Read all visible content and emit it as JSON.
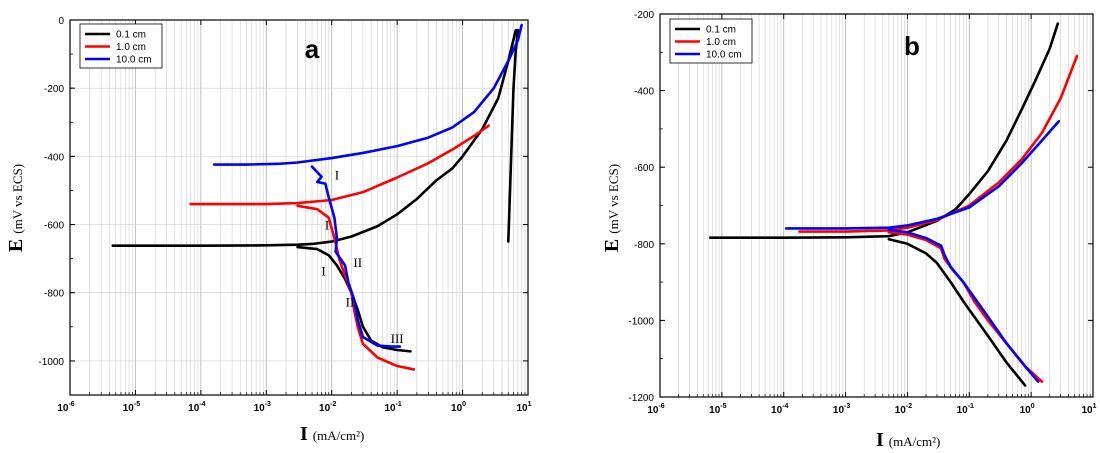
{
  "chart_data": [
    {
      "type": "line",
      "panel_label": "a",
      "xlabel": "I",
      "xunit": "(mA/cm²)",
      "ylabel": "E",
      "yunit": "(mV vs ECS)",
      "xscale": "log",
      "xlim": [
        1e-06,
        10
      ],
      "ylim": [
        -1100,
        0
      ],
      "yticks": [
        0,
        -200,
        -400,
        -600,
        -800,
        -1000
      ],
      "xtick_exponents": [
        -6,
        -5,
        -4,
        -3,
        -2,
        -1,
        0,
        1
      ],
      "grid": "x-minor",
      "legend": "top-left",
      "series": [
        {
          "name": "0.1 cm",
          "color": "#000000",
          "points": [
            [
              4.5e-06,
              -662
            ],
            [
              1e-05,
              -662
            ],
            [
              0.0001,
              -662
            ],
            [
              0.001,
              -661
            ],
            [
              0.003,
              -659
            ],
            [
              0.005,
              -657
            ],
            [
              0.01,
              -650
            ],
            [
              0.02,
              -635
            ],
            [
              0.05,
              -605
            ],
            [
              0.1,
              -570
            ],
            [
              0.2,
              -525
            ],
            [
              0.4,
              -470
            ],
            [
              0.7,
              -435
            ],
            [
              1.0,
              -400
            ],
            [
              2.0,
              -320
            ],
            [
              3.5,
              -230
            ],
            [
              5.0,
              -120
            ],
            [
              6.5,
              -30
            ],
            [
              7.0,
              -30
            ],
            [
              6.5,
              -90
            ],
            [
              6.0,
              -200
            ],
            [
              5.0,
              -650
            ]
          ],
          "branch2": [
            [
              0.003,
              -666
            ],
            [
              0.006,
              -672
            ],
            [
              0.009,
              -690
            ],
            [
              0.012,
              -720
            ],
            [
              0.016,
              -760
            ],
            [
              0.02,
              -800
            ],
            [
              0.025,
              -850
            ],
            [
              0.03,
              -900
            ],
            [
              0.04,
              -940
            ],
            [
              0.06,
              -960
            ],
            [
              0.1,
              -968
            ],
            [
              0.16,
              -972
            ]
          ]
        },
        {
          "name": "1.0 cm",
          "color": "#ff0000",
          "points": [
            [
              7e-05,
              -540
            ],
            [
              0.0001,
              -540
            ],
            [
              0.001,
              -540
            ],
            [
              0.003,
              -537
            ],
            [
              0.01,
              -528
            ],
            [
              0.03,
              -505
            ],
            [
              0.1,
              -462
            ],
            [
              0.3,
              -420
            ],
            [
              0.7,
              -380
            ],
            [
              1.5,
              -340
            ],
            [
              2.5,
              -310
            ]
          ],
          "branch2": [
            [
              0.003,
              -545
            ],
            [
              0.006,
              -555
            ],
            [
              0.009,
              -580
            ],
            [
              0.011,
              -640
            ],
            [
              0.013,
              -700
            ],
            [
              0.016,
              -750
            ],
            [
              0.02,
              -800
            ],
            [
              0.022,
              -850
            ],
            [
              0.025,
              -900
            ],
            [
              0.03,
              -950
            ],
            [
              0.05,
              -990
            ],
            [
              0.1,
              -1015
            ],
            [
              0.18,
              -1025
            ]
          ]
        },
        {
          "name": "10.0 cm",
          "color": "#0000ff",
          "points": [
            [
              0.00016,
              -424
            ],
            [
              0.0005,
              -424
            ],
            [
              0.0015,
              -422
            ],
            [
              0.003,
              -418
            ],
            [
              0.01,
              -405
            ],
            [
              0.03,
              -390
            ],
            [
              0.1,
              -370
            ],
            [
              0.3,
              -345
            ],
            [
              0.7,
              -315
            ],
            [
              1.5,
              -270
            ],
            [
              3.0,
              -200
            ],
            [
              5.0,
              -120
            ],
            [
              7.0,
              -60
            ],
            [
              8.0,
              -15
            ]
          ],
          "branch2": [
            [
              0.005,
              -430
            ],
            [
              0.007,
              -460
            ],
            [
              0.006,
              -475
            ],
            [
              0.008,
              -480
            ],
            [
              0.009,
              -520
            ],
            [
              0.011,
              -580
            ],
            [
              0.012,
              -640
            ],
            [
              0.0115,
              -680
            ],
            [
              0.016,
              -720
            ],
            [
              0.018,
              -770
            ],
            [
              0.022,
              -820
            ],
            [
              0.025,
              -880
            ],
            [
              0.03,
              -930
            ],
            [
              0.05,
              -955
            ],
            [
              0.08,
              -958
            ],
            [
              0.11,
              -958
            ]
          ]
        }
      ],
      "annotations": [
        {
          "text": "I",
          "x": 0.012,
          "y": -468
        },
        {
          "text": "I",
          "x": 0.0085,
          "y": -615
        },
        {
          "text": "I",
          "x": 0.0075,
          "y": -750
        },
        {
          "text": "II",
          "x": 0.025,
          "y": -725
        },
        {
          "text": "II",
          "x": 0.019,
          "y": -840
        },
        {
          "text": "III",
          "x": 0.1,
          "y": -948
        }
      ]
    },
    {
      "type": "line",
      "panel_label": "b",
      "xlabel": "I",
      "xunit": "(mA/cm²)",
      "ylabel": "E",
      "yunit": "(mV vs ECS)",
      "xscale": "log",
      "xlim": [
        1e-06,
        10
      ],
      "ylim": [
        -1200,
        -200
      ],
      "yticks": [
        -200,
        -400,
        -600,
        -800,
        -1000,
        -1200
      ],
      "xtick_exponents": [
        -6,
        -5,
        -4,
        -3,
        -2,
        -1,
        0,
        1
      ],
      "grid": "x-minor",
      "legend": "top-left",
      "series": [
        {
          "name": "0.1 cm",
          "color": "#000000",
          "points": [
            [
              6.5e-06,
              -784
            ],
            [
              0.0001,
              -784
            ],
            [
              0.001,
              -783
            ],
            [
              0.005,
              -780
            ],
            [
              0.01,
              -770
            ],
            [
              0.03,
              -740
            ],
            [
              0.06,
              -710
            ],
            [
              0.1,
              -670
            ],
            [
              0.2,
              -610
            ],
            [
              0.4,
              -530
            ],
            [
              0.7,
              -450
            ],
            [
              1.2,
              -370
            ],
            [
              2.0,
              -290
            ],
            [
              2.7,
              -225
            ]
          ],
          "branch2": [
            [
              0.005,
              -788
            ],
            [
              0.01,
              -800
            ],
            [
              0.02,
              -825
            ],
            [
              0.03,
              -850
            ],
            [
              0.05,
              -900
            ],
            [
              0.08,
              -950
            ],
            [
              0.12,
              -990
            ],
            [
              0.2,
              -1040
            ],
            [
              0.4,
              -1110
            ],
            [
              0.8,
              -1170
            ]
          ]
        },
        {
          "name": "1.0 cm",
          "color": "#ff0000",
          "points": [
            [
              0.00018,
              -768
            ],
            [
              0.001,
              -768
            ],
            [
              0.005,
              -765
            ],
            [
              0.01,
              -758
            ],
            [
              0.03,
              -738
            ],
            [
              0.1,
              -700
            ],
            [
              0.3,
              -640
            ],
            [
              0.7,
              -580
            ],
            [
              1.5,
              -510
            ],
            [
              3.0,
              -420
            ],
            [
              5.5,
              -310
            ]
          ],
          "branch2": [
            [
              0.005,
              -770
            ],
            [
              0.01,
              -776
            ],
            [
              0.02,
              -790
            ],
            [
              0.035,
              -812
            ],
            [
              0.04,
              -840
            ],
            [
              0.055,
              -870
            ],
            [
              0.08,
              -900
            ],
            [
              0.12,
              -950
            ],
            [
              0.2,
              -1000
            ],
            [
              0.4,
              -1060
            ],
            [
              0.8,
              -1120
            ],
            [
              1.5,
              -1160
            ]
          ]
        },
        {
          "name": "10.0 cm",
          "color": "#0000ff",
          "points": [
            [
              0.00011,
              -760
            ],
            [
              0.001,
              -760
            ],
            [
              0.005,
              -758
            ],
            [
              0.01,
              -752
            ],
            [
              0.03,
              -735
            ],
            [
              0.1,
              -705
            ],
            [
              0.3,
              -650
            ],
            [
              0.7,
              -590
            ],
            [
              1.5,
              -530
            ],
            [
              2.8,
              -480
            ]
          ],
          "branch2": [
            [
              0.005,
              -763
            ],
            [
              0.01,
              -770
            ],
            [
              0.02,
              -785
            ],
            [
              0.035,
              -805
            ],
            [
              0.04,
              -830
            ],
            [
              0.05,
              -860
            ],
            [
              0.08,
              -900
            ],
            [
              0.12,
              -940
            ],
            [
              0.2,
              -990
            ],
            [
              0.4,
              -1060
            ],
            [
              0.8,
              -1120
            ],
            [
              1.3,
              -1160
            ]
          ]
        }
      ],
      "annotations": []
    }
  ]
}
